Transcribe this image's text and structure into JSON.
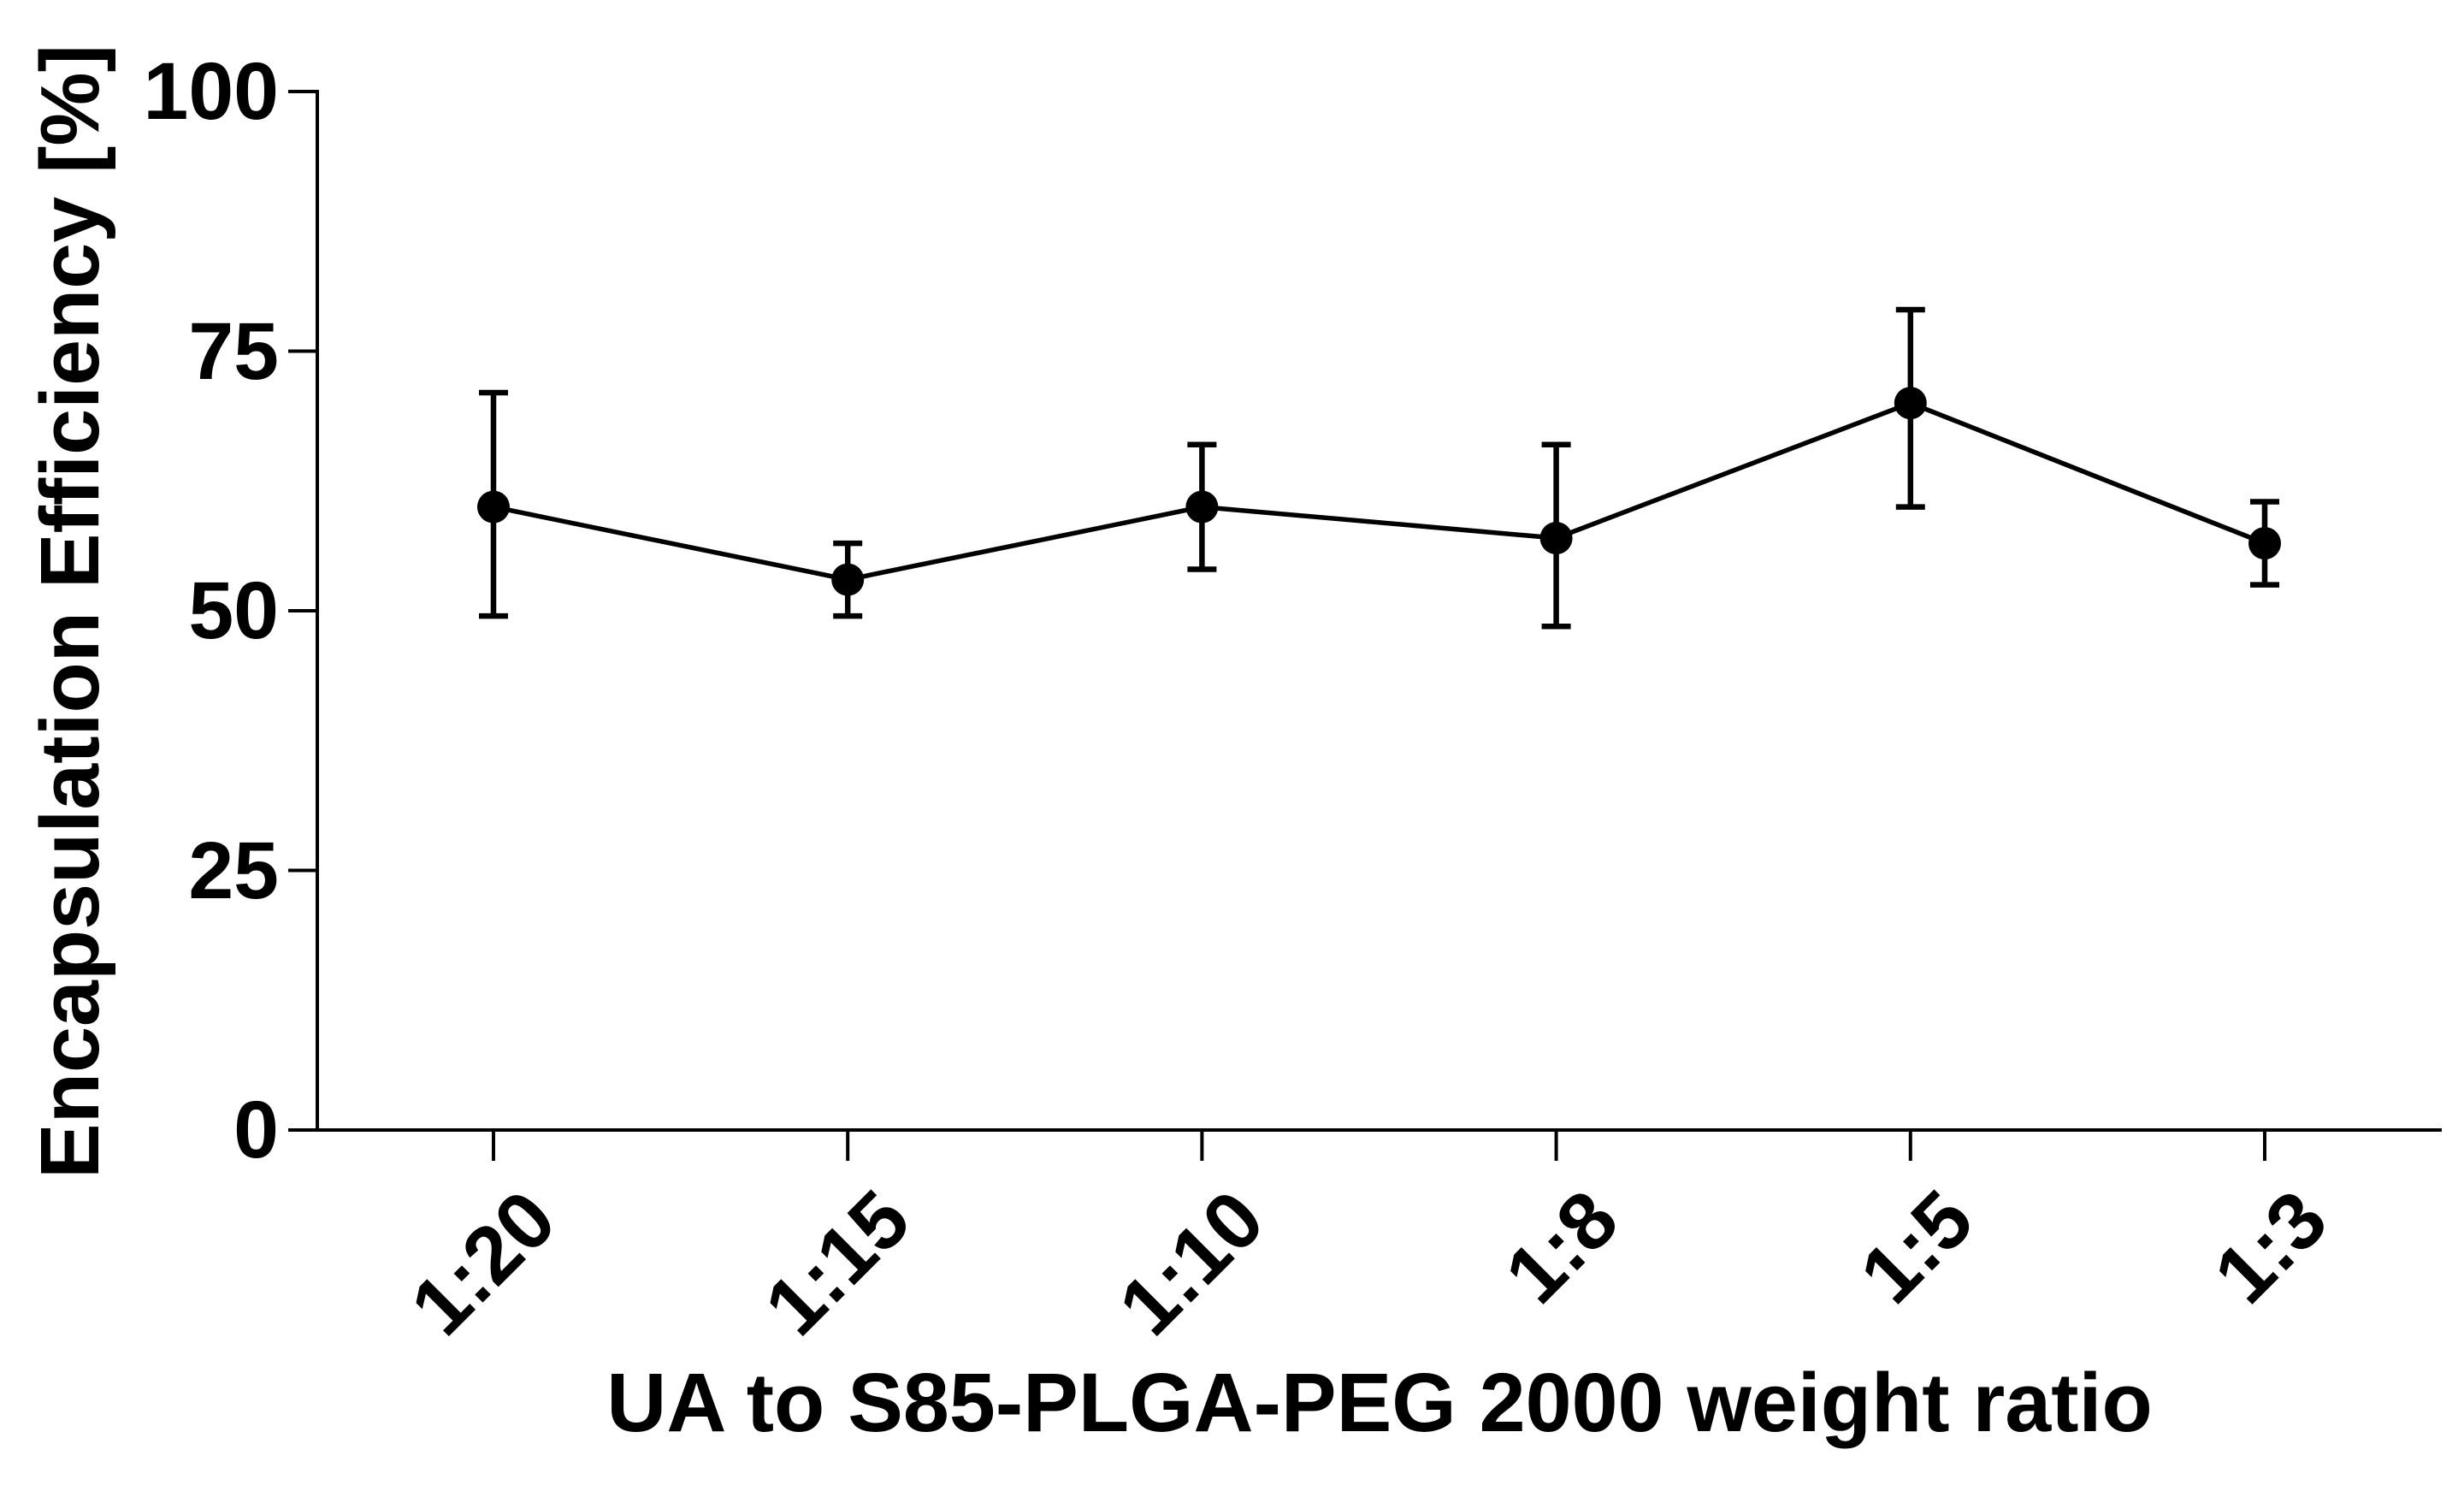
{
  "figure": {
    "background_color": "#ffffff",
    "axis_color": "#000000",
    "series_color": "#000000",
    "text_color": "#000000"
  },
  "chart_data": {
    "type": "line",
    "title": "",
    "xlabel": "UA to S85-PLGA-PEG 2000 weight ratio",
    "ylabel": "Encapsulation Efficiency [%]",
    "categories": [
      "1:20",
      "1:15",
      "1:10",
      "1:8",
      "1:5",
      "1:3"
    ],
    "series": [
      {
        "name": "Encapsulation Efficiency",
        "values": [
          60,
          53,
          60,
          57,
          70,
          56.5
        ],
        "error_upper_values": [
          71,
          56.5,
          66,
          66,
          79,
          60.5
        ],
        "error_lower_values": [
          49.5,
          49.5,
          54,
          48.5,
          60,
          52.5
        ]
      }
    ],
    "y_ticks": [
      0,
      25,
      50,
      75,
      100
    ],
    "y_tick_labels": [
      "0",
      "25",
      "50",
      "75",
      "100"
    ],
    "ylim": [
      0,
      100
    ],
    "grid": false,
    "legend": false,
    "marker": "filled-circle",
    "error_bars": true,
    "error_bar_caps": true
  }
}
